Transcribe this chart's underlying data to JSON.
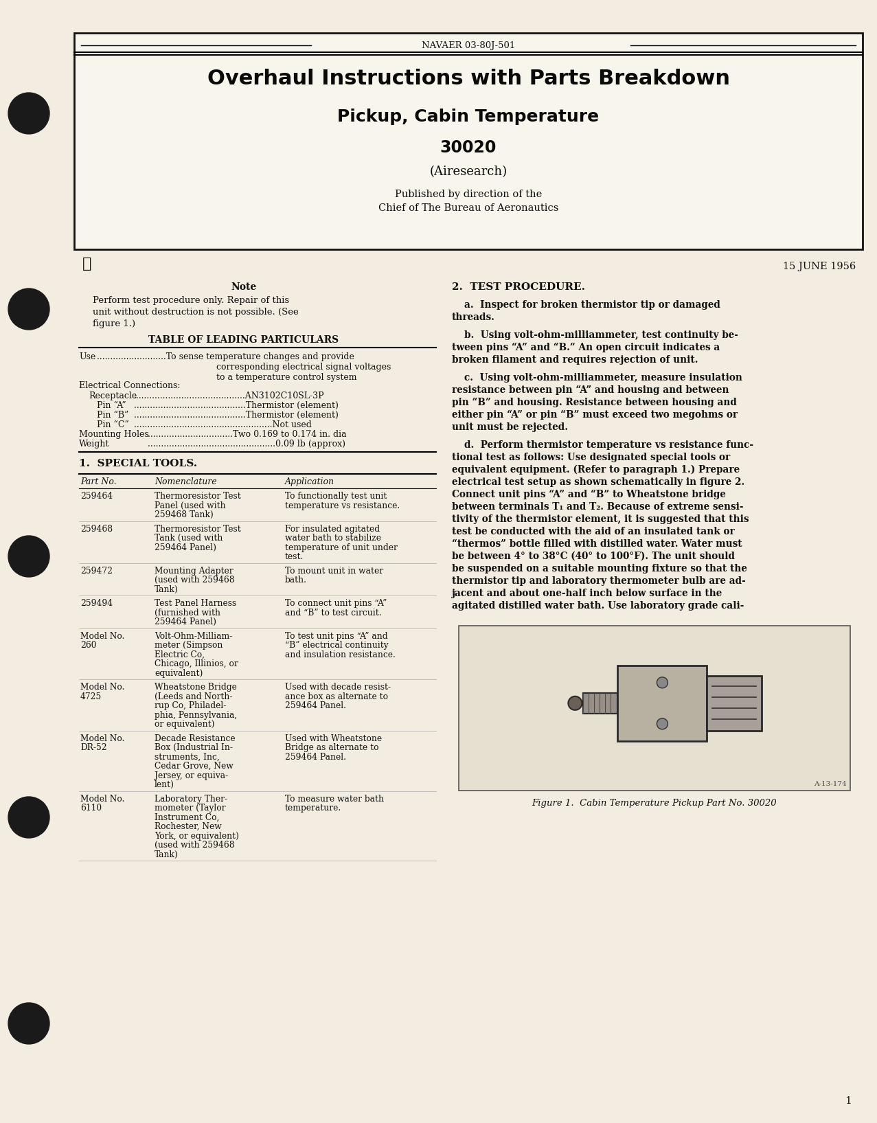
{
  "bg_color": "#f2ede0",
  "inner_bg": "#f8f5ec",
  "border_color": "#000000",
  "header_text": "NAVAER 03-80J-501",
  "title1": "Overhaul Instructions with Parts Breakdown",
  "title2": "Pickup, Cabin Temperature",
  "title3": "30020",
  "title4": "(Airesearch)",
  "published_line1": "Published by direction of the",
  "published_line2": "Chief of The Bureau of Aeronautics",
  "date": "15 JUNE 1956",
  "note_title": "Note",
  "note_lines": [
    "Perform test procedure only. Repair of this",
    "unit without destruction is not possible. (See",
    "figure 1.)"
  ],
  "table_title": "TABLE OF LEADING PARTICULARS",
  "section1_title": "1.  SPECIAL TOOLS.",
  "col1_header": "Part No.",
  "col2_header": "Nomenclature",
  "col3_header": "Application",
  "tools": [
    {
      "part": [
        "259464"
      ],
      "name": [
        "Thermoresistor Test",
        "Panel (used with",
        "259468 Tank)"
      ],
      "app": [
        "To functionally test unit",
        "temperature vs resistance."
      ]
    },
    {
      "part": [
        "259468"
      ],
      "name": [
        "Thermoresistor Test",
        "Tank (used with",
        "259464 Panel)"
      ],
      "app": [
        "For insulated agitated",
        "water bath to stabilize",
        "temperature of unit under",
        "test."
      ]
    },
    {
      "part": [
        "259472"
      ],
      "name": [
        "Mounting Adapter",
        "(used with 259468",
        "Tank)"
      ],
      "app": [
        "To mount unit in water",
        "bath."
      ]
    },
    {
      "part": [
        "259494"
      ],
      "name": [
        "Test Panel Harness",
        "(furnished with",
        "259464 Panel)"
      ],
      "app": [
        "To connect unit pins “A”",
        "and “B” to test circuit."
      ]
    },
    {
      "part": [
        "Model No.",
        "260"
      ],
      "name": [
        "Volt-Ohm-Milliam-",
        "meter (Simpson",
        "Electric Co,",
        "Chicago, Illinios, or",
        "equivalent)"
      ],
      "app": [
        "To test unit pins “A” and",
        "“B” electrical continuity",
        "and insulation resistance."
      ]
    },
    {
      "part": [
        "Model No.",
        "4725"
      ],
      "name": [
        "Wheatstone Bridge",
        "(Leeds and North-",
        "rup Co, Philadel-",
        "phia, Pennsylvania,",
        "or equivalent)"
      ],
      "app": [
        "Used with decade resist-",
        "ance box as alternate to",
        "259464 Panel."
      ]
    },
    {
      "part": [
        "Model No.",
        "DR-52"
      ],
      "name": [
        "Decade Resistance",
        "Box (Industrial In-",
        "struments, Inc,",
        "Cedar Grove, New",
        "Jersey, or equiva-",
        "lent)"
      ],
      "app": [
        "Used with Wheatstone",
        "Bridge as alternate to",
        "259464 Panel."
      ]
    },
    {
      "part": [
        "Model No.",
        "6110"
      ],
      "name": [
        "Laboratory Ther-",
        "mometer (Taylor",
        "Instrument Co,",
        "Rochester, New",
        "York, or equivalent)",
        "(used with 259468",
        "Tank)"
      ],
      "app": [
        "To measure water bath",
        "temperature."
      ]
    }
  ],
  "section2_title": "2.  TEST PROCEDURE.",
  "para_a_lines": [
    "a.  Inspect for broken thermistor tip or damaged",
    "threads."
  ],
  "para_b_lines": [
    "b.  Using volt-ohm-milliammeter, test continuity be-",
    "tween pins “A” and “B.” An open circuit indicates a",
    "broken filament and requires rejection of unit."
  ],
  "para_c_lines": [
    "c.  Using volt-ohm-milliammeter, measure insulation",
    "resistance between pin “A” and housing and between",
    "pin “B” and housing. Resistance between housing and",
    "either pin “A” or pin “B” must exceed two megohms or",
    "unit must be rejected."
  ],
  "para_d_lines": [
    "d.  Perform thermistor temperature vs resistance func-",
    "tional test as follows: Use designated special tools or",
    "equivalent equipment. (Refer to paragraph 1.) Prepare",
    "electrical test setup as shown schematically in figure 2.",
    "Connect unit pins “A” and “B” to Wheatstone bridge",
    "between terminals T₁ and T₂. Because of extreme sensi-",
    "tivity of the thermistor element, it is suggested that this",
    "test be conducted with the aid of an insulated tank or",
    "“thermos” bottle filled with distilled water. Water must",
    "be between 4° to 38°C (40° to 100°F). The unit should",
    "be suspended on a suitable mounting fixture so that the",
    "thermistor tip and laboratory thermometer bulb are ad-",
    "jacent and about one-half inch below surface in the",
    "agitated distilled water bath. Use laboratory grade cali-"
  ],
  "fig_caption": "Figure 1.  Cabin Temperature Pickup Part No. 30020",
  "fig_label": "A-13-174",
  "page_num": "1",
  "star_symbol": "★",
  "use_row": [
    "Use",
    "To sense temperature changes and provide",
    "corresponding electrical signal voltages",
    "to a temperature control system"
  ],
  "elec_connections": [
    [
      "Electrical Connections:",
      "",
      ""
    ],
    [
      "  Receptacle",
      "AN3102C10SL-3P",
      ""
    ],
    [
      "    Pin “A”",
      "Thermistor (element)",
      ""
    ],
    [
      "    Pin “B”",
      "Thermistor (element)",
      ""
    ],
    [
      "    Pin “C”",
      "Not used",
      ""
    ],
    [
      "Mounting Holes",
      "Two 0.169 to 0.174 in. dia",
      ""
    ],
    [
      "Weight",
      "0.09 lb (approx)",
      ""
    ]
  ]
}
